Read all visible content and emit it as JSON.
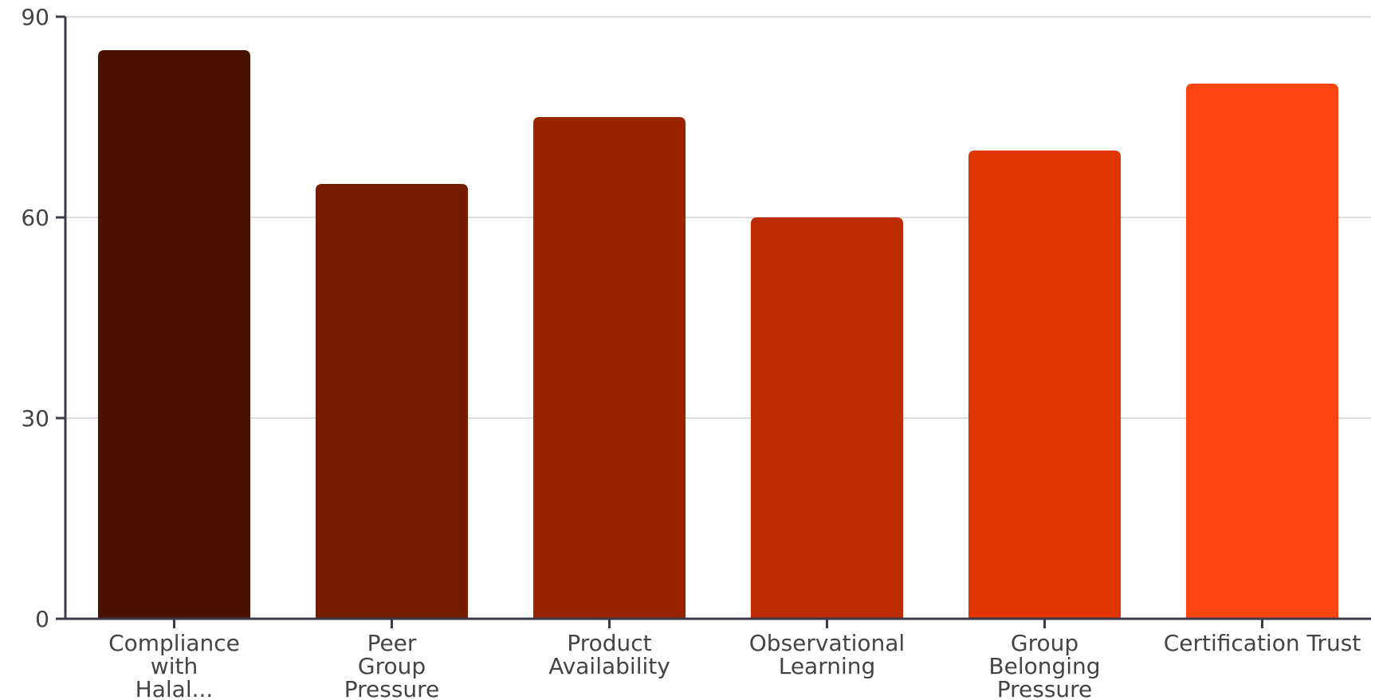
{
  "chart_data": {
    "type": "bar",
    "categories": [
      [
        "Compliance",
        "with",
        "Halal..."
      ],
      [
        "Peer",
        "Group",
        "Pressure"
      ],
      [
        "Product",
        "Availability"
      ],
      [
        "Observational",
        "Learning"
      ],
      [
        "Group",
        "Belonging",
        "Pressure"
      ],
      [
        "Certification Trust"
      ]
    ],
    "values": [
      85,
      65,
      75,
      60,
      70,
      80
    ],
    "colors": [
      "#4a1200",
      "#731c00",
      "#982400",
      "#bd2b00",
      "#e03500",
      "#ff4510"
    ],
    "ylim": [
      0,
      90
    ],
    "yticks": [
      0,
      30,
      60,
      90
    ],
    "grid": true,
    "title": "",
    "xlabel": "",
    "ylabel": ""
  }
}
